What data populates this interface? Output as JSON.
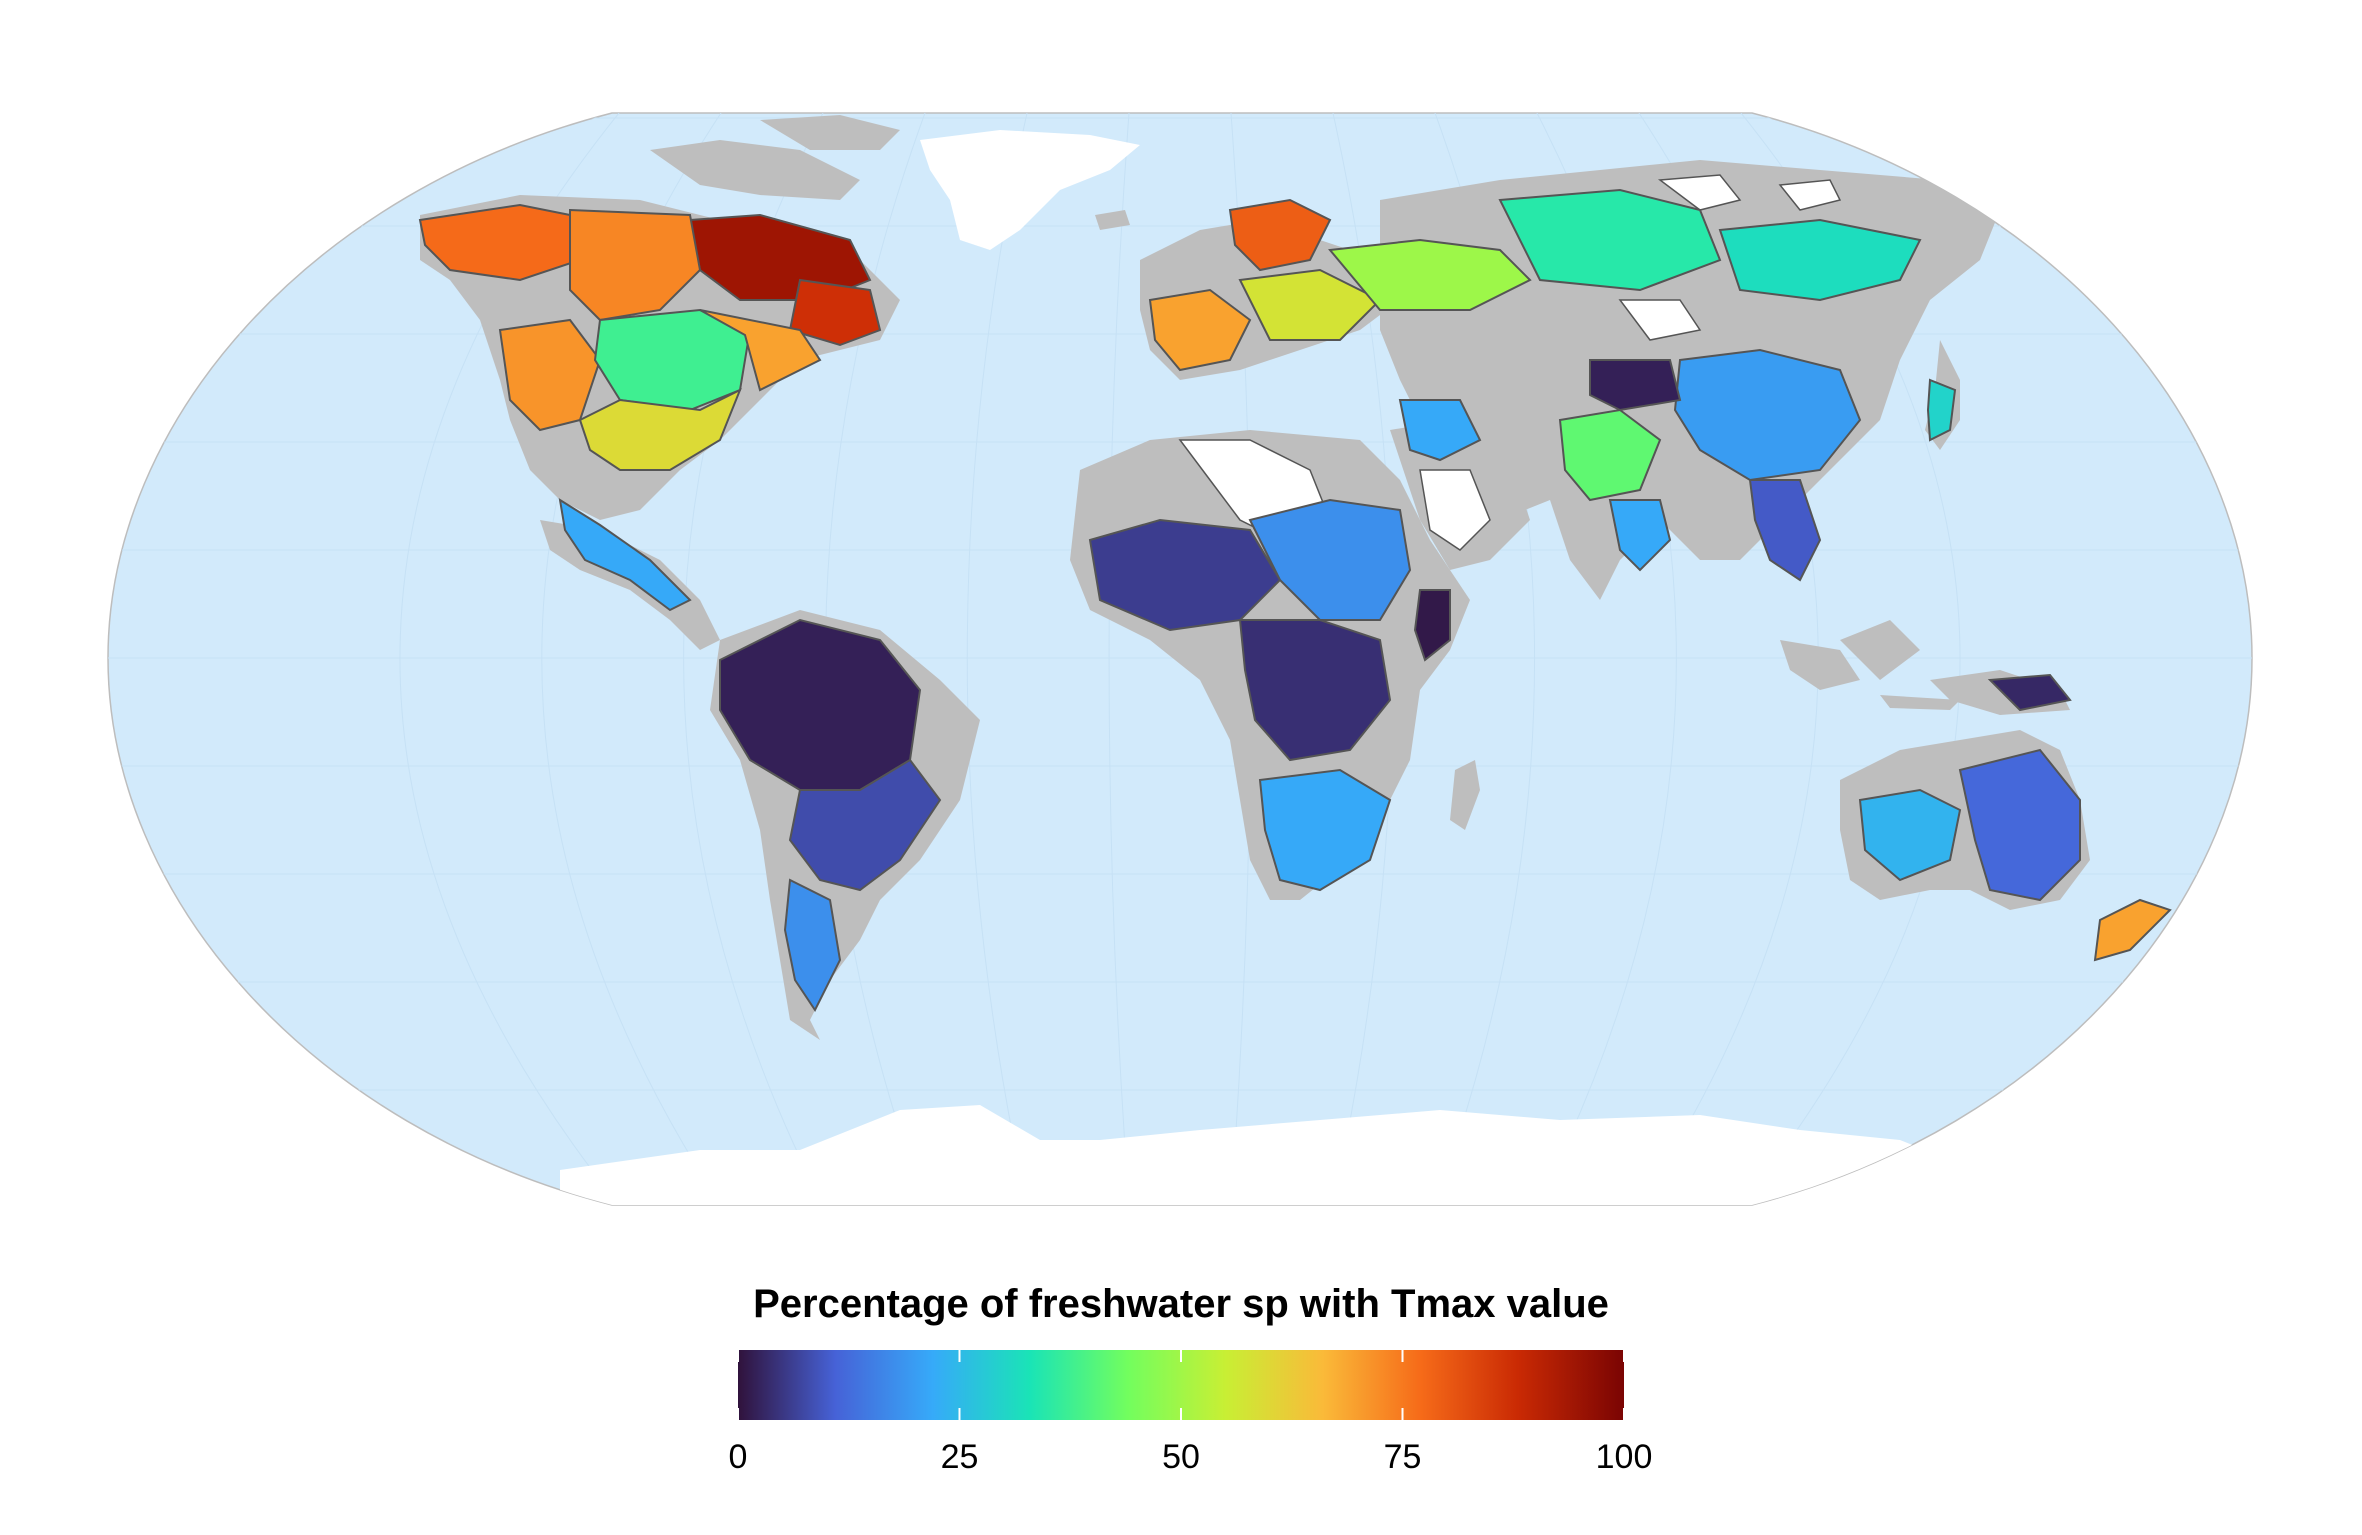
{
  "legend": {
    "title": "Percentage of freshwater sp with Tmax value",
    "min": 0,
    "max": 100,
    "ticks": [
      "0",
      "25",
      "50",
      "75",
      "100"
    ],
    "tick_values": [
      0,
      25,
      50,
      75,
      100
    ],
    "colormap": [
      "#30123b",
      "#4662d7",
      "#36aaf9",
      "#1ae4b6",
      "#72fe5e",
      "#c8ef34",
      "#faba39",
      "#f66b19",
      "#ca2a04",
      "#7a0403"
    ]
  },
  "colors": {
    "ocean": "#d2eafb",
    "no_data_land": "#bebebe",
    "ice_land": "#ffffff",
    "basin_border": "#555555"
  },
  "regions": [
    {
      "id": "alaska-yukon",
      "value": 78
    },
    {
      "id": "canada-north",
      "value": 95
    },
    {
      "id": "hudson-east",
      "value": 88
    },
    {
      "id": "canada-west",
      "value": 74
    },
    {
      "id": "usa-northwest",
      "value": 72
    },
    {
      "id": "great-plains",
      "value": 38
    },
    {
      "id": "usa-east",
      "value": 70
    },
    {
      "id": "usa-south",
      "value": 60
    },
    {
      "id": "mexico-central-america",
      "value": 22
    },
    {
      "id": "amazon",
      "value": 2
    },
    {
      "id": "parana-plata",
      "value": 8
    },
    {
      "id": "southern-cone",
      "value": 18
    },
    {
      "id": "europe-west",
      "value": 70
    },
    {
      "id": "europe-central",
      "value": 58
    },
    {
      "id": "scandinavia",
      "value": 80
    },
    {
      "id": "russia-west",
      "value": 50
    },
    {
      "id": "siberia-central",
      "value": 35
    },
    {
      "id": "siberia-east",
      "value": 32
    },
    {
      "id": "west-africa",
      "value": 6
    },
    {
      "id": "nile",
      "value": 18
    },
    {
      "id": "congo",
      "value": 4
    },
    {
      "id": "south-africa",
      "value": 22
    },
    {
      "id": "horn-of-africa",
      "value": 1
    },
    {
      "id": "middle-east",
      "value": 22
    },
    {
      "id": "indus-ganges",
      "value": 42
    },
    {
      "id": "india-south",
      "value": 22
    },
    {
      "id": "china",
      "value": 20
    },
    {
      "id": "southeast-asia",
      "value": 10
    },
    {
      "id": "central-asia",
      "value": 2
    },
    {
      "id": "australia-east",
      "value": 12
    },
    {
      "id": "australia-west",
      "value": 24
    },
    {
      "id": "new-zealand",
      "value": 70
    },
    {
      "id": "borneo-newguinea",
      "value": 3
    },
    {
      "id": "japan",
      "value": 30
    }
  ]
}
